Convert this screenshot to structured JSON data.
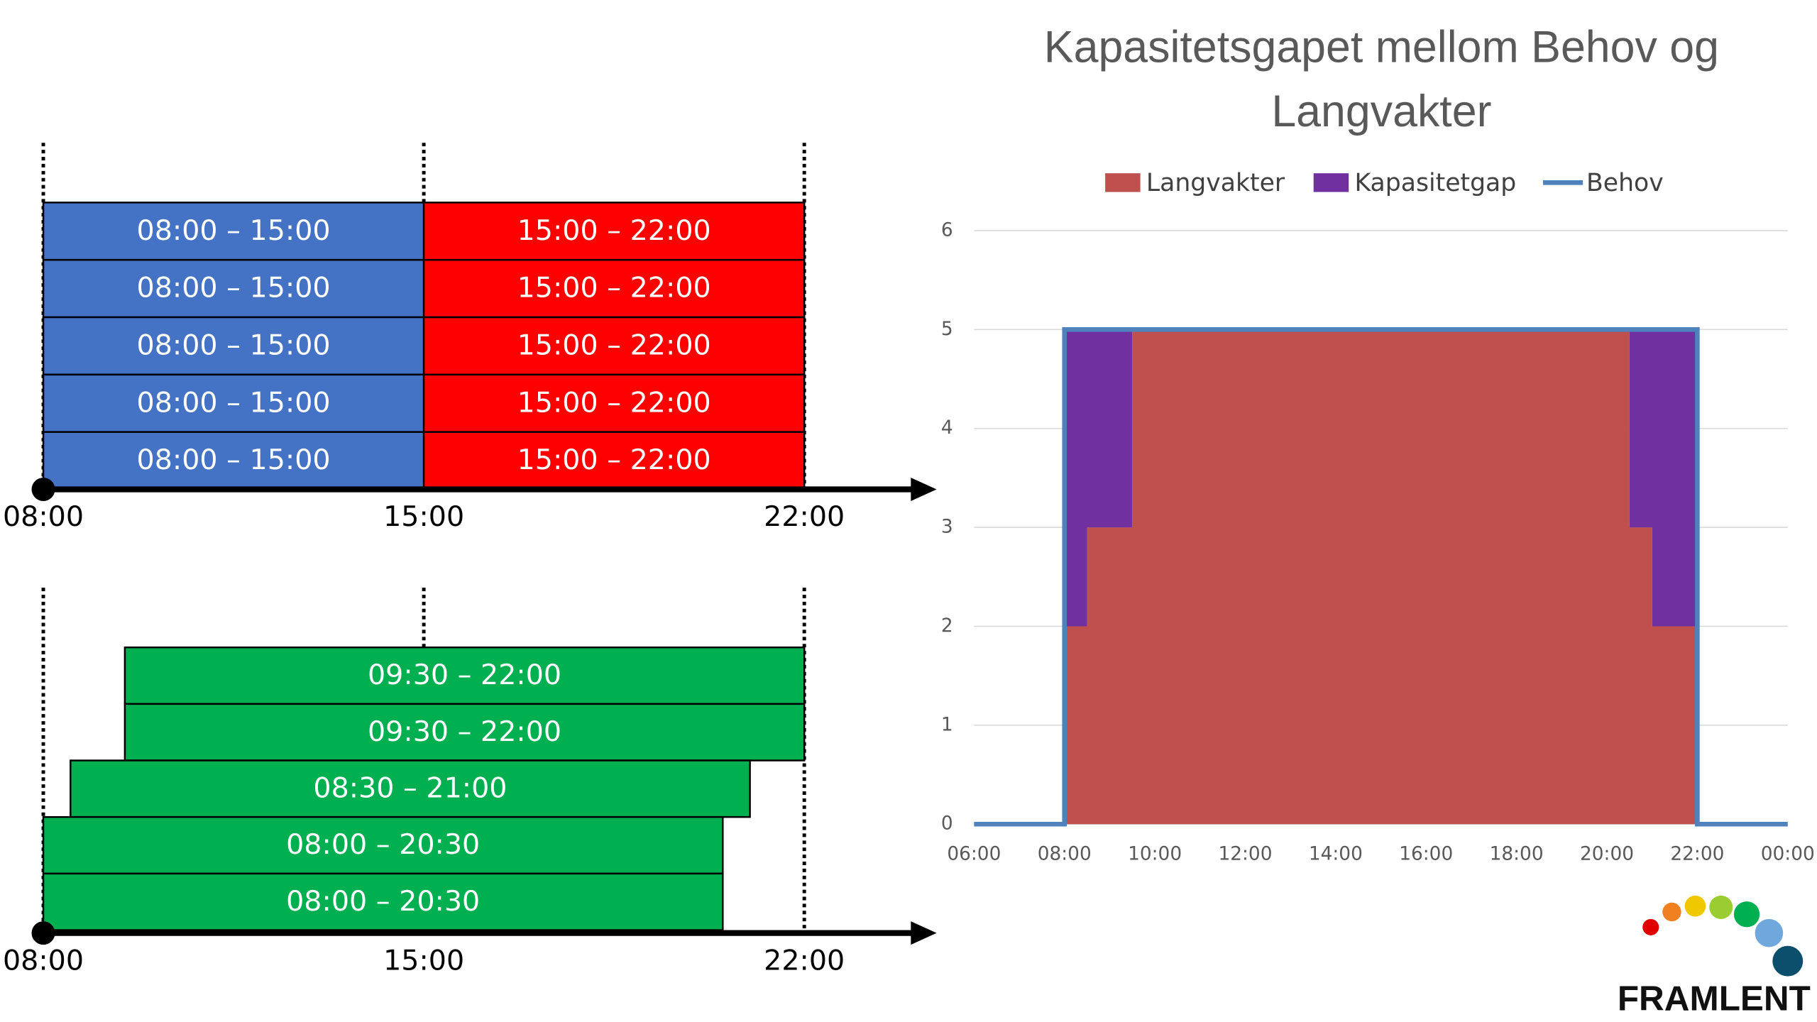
{
  "diagrams": [
    {
      "columns": [
        {
          "color": "#4472c4",
          "labels": [
            "08:00 – 15:00",
            "08:00 – 15:00",
            "08:00 – 15:00",
            "08:00 – 15:00",
            "08:00 – 15:00"
          ]
        },
        {
          "color": "#ff0000",
          "labels": [
            "15:00 – 22:00",
            "15:00 – 22:00",
            "15:00 – 22:00",
            "15:00 – 22:00",
            "15:00 – 22:00"
          ]
        }
      ],
      "axis_labels": [
        "08:00",
        "15:00",
        "22:00"
      ]
    },
    {
      "columns": [
        {
          "color": "#00b050",
          "labels": [
            "09:30 – 22:00",
            "09:30 – 22:00",
            "08:30 – 21:00",
            "08:00 – 20:30",
            "08:00 – 20:30"
          ]
        }
      ],
      "axis_labels": [
        "08:00",
        "15:00",
        "22:00"
      ]
    }
  ],
  "chart_data": {
    "type": "area",
    "title": "Kapasitetsgapet mellom Behov og Langvakter",
    "x": [
      6,
      8,
      8,
      8.5,
      8.5,
      9.5,
      9.5,
      20.5,
      20.5,
      21,
      21,
      22,
      22,
      24
    ],
    "series": [
      {
        "name": "Langvakter",
        "color": "#c0504d",
        "kind": "area",
        "values": [
          0,
          0,
          2,
          2,
          3,
          3,
          5,
          5,
          3,
          3,
          2,
          2,
          0,
          0
        ]
      },
      {
        "name": "Kapasitetgap",
        "color": "#7030a0",
        "kind": "area",
        "values": [
          0,
          0,
          3,
          3,
          2,
          2,
          0,
          0,
          2,
          2,
          3,
          3,
          0,
          0
        ]
      },
      {
        "name": "Behov",
        "color": "#4f81bd",
        "kind": "line",
        "values": [
          0,
          0,
          5,
          5,
          5,
          5,
          5,
          5,
          5,
          5,
          5,
          5,
          0,
          0
        ]
      }
    ],
    "xlim": [
      6,
      24
    ],
    "xticks": [
      {
        "value": 6,
        "label": "06:00"
      },
      {
        "value": 8,
        "label": "08:00"
      },
      {
        "value": 10,
        "label": "10:00"
      },
      {
        "value": 12,
        "label": "12:00"
      },
      {
        "value": 14,
        "label": "14:00"
      },
      {
        "value": 16,
        "label": "16:00"
      },
      {
        "value": 18,
        "label": "18:00"
      },
      {
        "value": 20,
        "label": "20:00"
      },
      {
        "value": 22,
        "label": "22:00"
      },
      {
        "value": 24,
        "label": "00:00"
      }
    ],
    "ylim": [
      0,
      6
    ],
    "yticks": [
      0,
      1,
      2,
      3,
      4,
      5,
      6
    ],
    "grid": true,
    "legend": "top"
  },
  "logo": "FRAMLENT"
}
